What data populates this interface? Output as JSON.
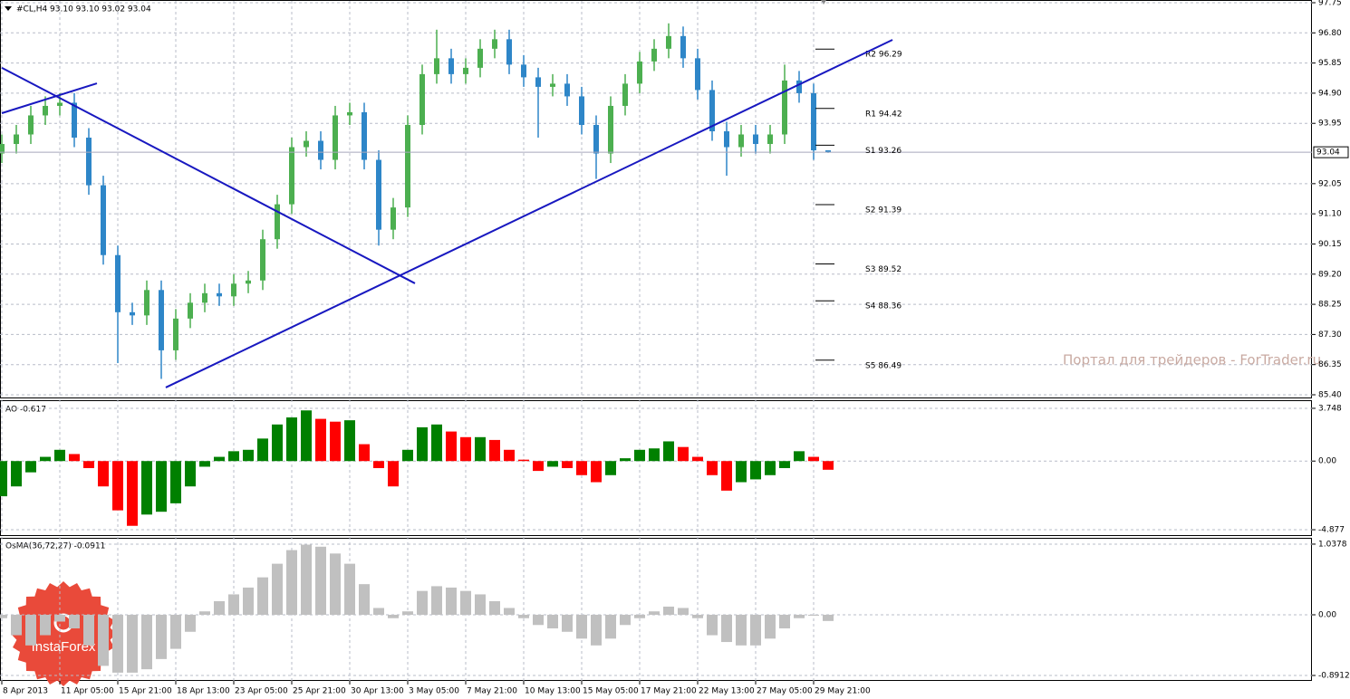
{
  "chart_data": [
    {
      "type": "candlestick",
      "title": "#CL,H4 93.10 93.10 93.02 93.04",
      "categories": [
        "8 Apr 2013",
        null,
        null,
        null,
        "11 Apr 05:00",
        null,
        null,
        null,
        "15 Apr 21:00",
        null,
        null,
        null,
        "18 Apr 13:00",
        null,
        null,
        null,
        "23 Apr 05:00",
        null,
        null,
        null,
        "25 Apr 21:00",
        null,
        null,
        null,
        "30 Apr 13:00",
        null,
        null,
        null,
        "3 May 05:00",
        null,
        null,
        null,
        "7 May 21:00",
        null,
        null,
        null,
        "10 May 13:00",
        null,
        null,
        null,
        "15 May 05:00",
        null,
        null,
        null,
        "17 May 21:00",
        null,
        null,
        null,
        "22 May 13:00",
        null,
        null,
        null,
        "27 May 05:00",
        null,
        null,
        null,
        "29 May 21:00",
        null
      ],
      "open": [
        93.0,
        93.3,
        93.6,
        94.2,
        94.5,
        94.6,
        93.5,
        92.0,
        89.8,
        88.0,
        87.9,
        88.7,
        86.8,
        87.8,
        88.3,
        88.6,
        88.5,
        88.9,
        89.0,
        90.3,
        91.4,
        93.2,
        93.4,
        92.8,
        94.2,
        94.3,
        92.8,
        90.6,
        91.3,
        93.9,
        95.5,
        96.0,
        95.5,
        95.7,
        96.3,
        96.6,
        95.8,
        95.4,
        95.1,
        95.2,
        94.8,
        93.9,
        93.0,
        94.5,
        95.2,
        95.9,
        96.3,
        96.7,
        96.0,
        95.0,
        93.7,
        93.2,
        93.6,
        93.3,
        93.6,
        95.3,
        94.9,
        93.1
      ],
      "high": [
        93.6,
        93.9,
        94.5,
        94.8,
        94.9,
        94.9,
        93.8,
        92.3,
        90.1,
        88.3,
        89.0,
        89.0,
        88.1,
        88.6,
        88.9,
        88.9,
        89.2,
        89.3,
        90.6,
        91.7,
        93.5,
        93.7,
        93.7,
        94.5,
        94.6,
        94.6,
        93.1,
        91.6,
        94.2,
        95.8,
        96.9,
        96.3,
        96.0,
        96.6,
        96.9,
        96.9,
        96.1,
        95.7,
        95.5,
        95.5,
        95.1,
        94.2,
        94.8,
        95.5,
        96.2,
        96.6,
        97.1,
        97.0,
        96.3,
        95.3,
        94.0,
        93.9,
        93.9,
        93.9,
        95.8,
        95.6,
        95.2,
        93.1
      ],
      "low": [
        92.7,
        93.0,
        93.3,
        93.9,
        94.2,
        93.2,
        91.7,
        89.5,
        86.4,
        87.6,
        87.6,
        85.9,
        86.5,
        87.5,
        88.0,
        88.2,
        88.2,
        88.6,
        88.7,
        90.0,
        91.1,
        92.9,
        92.5,
        92.5,
        93.9,
        92.5,
        90.1,
        90.3,
        91.0,
        93.6,
        95.2,
        95.2,
        95.2,
        95.4,
        96.0,
        95.5,
        95.1,
        93.5,
        94.8,
        94.5,
        93.6,
        92.2,
        92.7,
        94.2,
        94.9,
        95.6,
        96.0,
        95.7,
        94.7,
        93.4,
        92.3,
        92.9,
        93.0,
        93.0,
        93.3,
        94.6,
        92.8,
        93.02
      ],
      "close": [
        93.3,
        93.6,
        94.2,
        94.5,
        94.6,
        93.5,
        92.0,
        89.8,
        88.0,
        87.9,
        88.7,
        86.8,
        87.8,
        88.3,
        88.6,
        88.5,
        88.9,
        89.0,
        90.3,
        91.4,
        93.2,
        93.4,
        92.8,
        94.2,
        94.3,
        92.8,
        90.6,
        91.3,
        93.9,
        95.5,
        96.0,
        95.5,
        95.7,
        96.3,
        96.6,
        95.8,
        95.4,
        95.1,
        95.2,
        94.8,
        93.9,
        93.0,
        94.5,
        95.2,
        95.9,
        96.3,
        96.7,
        96.0,
        95.0,
        93.7,
        93.2,
        93.6,
        93.3,
        93.6,
        95.3,
        94.9,
        93.1,
        93.04
      ],
      "up_color": "#4caf50",
      "down_color": "#2e86c8",
      "ylim": [
        85.4,
        97.75
      ],
      "yticks": [
        97.75,
        {
          "value": 96.8,
          "label": "96.80"
        },
        95.85,
        {
          "value": 94.9,
          "label": "94.90"
        },
        93.95,
        92.05,
        {
          "value": 91.1,
          "label": "91.10"
        },
        90.15,
        {
          "value": 89.2,
          "label": "89.20"
        },
        88.25,
        {
          "value": 87.3,
          "label": "87.30"
        },
        86.35,
        {
          "value": 85.4,
          "label": "85.40"
        }
      ],
      "grid": true,
      "last": 93.04,
      "last_color": "#a8a8bc",
      "levels": [
        {
          "label": "R2 96.29",
          "value": 96.29
        },
        {
          "label": "R1 94.42",
          "value": 94.42
        },
        {
          "label": "S1 93.26",
          "value": 93.26
        },
        {
          "label": "S2 91.39",
          "value": 91.39
        },
        {
          "label": "S3 89.52",
          "value": 89.52
        },
        {
          "label": "S4 88.36",
          "value": 88.36
        },
        {
          "label": "S5 86.49",
          "value": 86.49
        }
      ],
      "trendline_color": "#1818c0",
      "trendlines": [
        {
          "x": [
            0,
            28.5
          ],
          "y": [
            95.7,
            88.91
          ]
        },
        {
          "x": [
            0,
            6.56
          ],
          "y": [
            94.27,
            95.21
          ]
        },
        {
          "x": [
            11.31,
            61.44
          ],
          "y": [
            85.63,
            96.58
          ]
        }
      ]
    },
    {
      "type": "bar",
      "title": "AO -0.617",
      "values": [
        -2.5,
        -1.8,
        -0.8,
        0.3,
        0.8,
        0.5,
        -0.5,
        -1.8,
        -3.5,
        -4.6,
        -3.8,
        -3.6,
        -3.0,
        -1.8,
        -0.4,
        0.3,
        0.7,
        0.8,
        1.6,
        2.6,
        3.1,
        3.6,
        3.0,
        2.8,
        2.9,
        1.2,
        -0.5,
        -1.8,
        0.8,
        2.4,
        2.6,
        2.1,
        1.7,
        1.7,
        1.5,
        0.8,
        0.1,
        -0.7,
        -0.4,
        -0.5,
        -1.0,
        -1.5,
        -1.0,
        0.2,
        0.8,
        0.9,
        1.4,
        1.0,
        0.3,
        -1.0,
        -2.1,
        -1.5,
        -1.3,
        -1.0,
        -0.5,
        0.7,
        0.3,
        -0.617
      ],
      "up_color": "#008000",
      "down_color": "#ff0000",
      "ylim": [
        -5.26,
        4.26
      ],
      "yticks": [
        3.748,
        {
          "value": 0,
          "label": "0.00"
        },
        -4.877
      ],
      "grid": true
    },
    {
      "type": "bar",
      "title": "OsMA(36,72,27) -0.0911",
      "values": [
        -0.05,
        -0.3,
        -0.45,
        -0.3,
        -0.1,
        -0.2,
        -0.45,
        -0.75,
        -0.85,
        -0.85,
        -0.8,
        -0.65,
        -0.5,
        -0.25,
        0.05,
        0.2,
        0.3,
        0.4,
        0.55,
        0.75,
        0.95,
        1.03,
        1.0,
        0.9,
        0.75,
        0.45,
        0.1,
        -0.05,
        0.05,
        0.35,
        0.42,
        0.4,
        0.35,
        0.3,
        0.2,
        0.1,
        -0.05,
        -0.15,
        -0.2,
        -0.25,
        -0.35,
        -0.45,
        -0.35,
        -0.15,
        -0.05,
        0.05,
        0.12,
        0.1,
        -0.05,
        -0.3,
        -0.4,
        -0.45,
        -0.45,
        -0.35,
        -0.2,
        -0.05,
        0.0,
        -0.0911
      ],
      "color": "#c0c0c0",
      "ylim": [
        -0.971,
        1.117
      ],
      "yticks": [
        1.0378,
        {
          "value": 0,
          "label": "0.00"
        },
        -0.8912
      ],
      "grid": true
    }
  ],
  "watermark": "Портал для трейдеров - ForTrader.ru",
  "logo_text": "InstaForex"
}
